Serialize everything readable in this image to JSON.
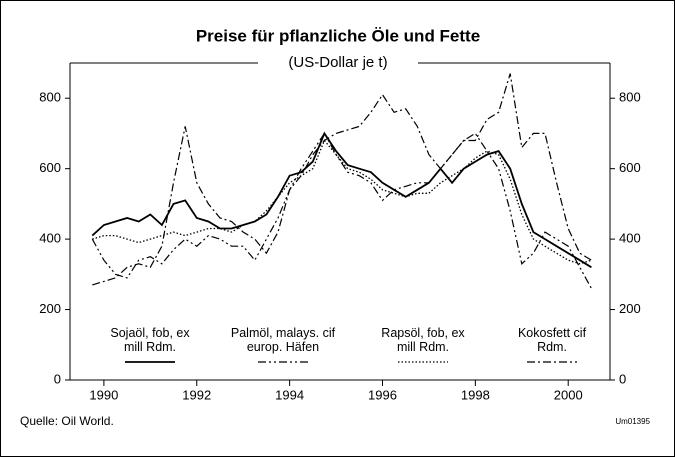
{
  "chart_data": {
    "type": "line",
    "title": "Preise für pflanzliche Öle und Fette",
    "subtitle": "(US-Dollar je t)",
    "source": "Quelle: Oil World.",
    "code": "Um01395",
    "x": [
      1989.75,
      1990,
      1990.25,
      1990.5,
      1990.75,
      1991,
      1991.25,
      1991.5,
      1991.75,
      1992,
      1992.25,
      1992.5,
      1992.75,
      1993,
      1993.25,
      1993.5,
      1993.75,
      1994,
      1994.25,
      1994.5,
      1994.75,
      1995,
      1995.25,
      1995.5,
      1995.75,
      1996,
      1996.25,
      1996.5,
      1996.75,
      1997,
      1997.25,
      1997.5,
      1997.75,
      1998,
      1998.25,
      1998.5,
      1998.75,
      1999,
      1999.25,
      1999.5,
      1999.75,
      2000,
      2000.25,
      2000.5
    ],
    "xlim": [
      1989.27,
      2000.9
    ],
    "xticks": [
      1990,
      1992,
      1994,
      1996,
      1998,
      2000
    ],
    "ylim": [
      0,
      900
    ],
    "yticks": [
      0,
      200,
      400,
      600,
      800
    ],
    "series": [
      {
        "name": "Sojaöl, fob, ex mill Rdm.",
        "color": "#000000",
        "dash": "none",
        "width": 1.8,
        "values": [
          410,
          440,
          450,
          460,
          450,
          470,
          440,
          500,
          510,
          460,
          450,
          430,
          430,
          440,
          450,
          470,
          520,
          580,
          590,
          620,
          700,
          650,
          610,
          600,
          590,
          560,
          540,
          520,
          540,
          560,
          600,
          560,
          600,
          620,
          640,
          650,
          600,
          500,
          420,
          400,
          380,
          360,
          340,
          320
        ]
      },
      {
        "name": "Palmöl, malays. cif europ. Häfen",
        "color": "#000000",
        "dash": "8 3 2 3 2 3",
        "width": 1.2,
        "values": [
          400,
          340,
          300,
          290,
          340,
          350,
          330,
          370,
          400,
          380,
          410,
          400,
          380,
          380,
          340,
          400,
          460,
          540,
          600,
          650,
          700,
          640,
          590,
          580,
          560,
          510,
          540,
          550,
          560,
          560,
          600,
          640,
          680,
          700,
          650,
          600,
          480,
          330,
          360,
          420,
          400,
          380,
          320,
          260
        ]
      },
      {
        "name": "Rapsöl, fob, ex mill Rdm.",
        "color": "#000000",
        "dash": "1.5 2",
        "width": 1.3,
        "values": [
          400,
          410,
          410,
          400,
          390,
          400,
          410,
          420,
          410,
          420,
          430,
          430,
          420,
          440,
          450,
          480,
          520,
          560,
          580,
          600,
          680,
          640,
          600,
          590,
          570,
          540,
          530,
          520,
          530,
          530,
          560,
          580,
          600,
          630,
          650,
          640,
          570,
          470,
          400,
          380,
          360,
          340,
          330,
          340
        ]
      },
      {
        "name": "Kokosfett cif Rdm.",
        "color": "#000000",
        "dash": "8 3 2 3",
        "width": 1.2,
        "values": [
          270,
          280,
          290,
          320,
          330,
          320,
          380,
          560,
          720,
          560,
          500,
          460,
          450,
          420,
          400,
          360,
          420,
          540,
          580,
          640,
          680,
          700,
          710,
          720,
          760,
          810,
          760,
          770,
          720,
          640,
          600,
          640,
          680,
          680,
          740,
          760,
          870,
          660,
          700,
          700,
          560,
          430,
          360,
          340
        ]
      }
    ]
  }
}
